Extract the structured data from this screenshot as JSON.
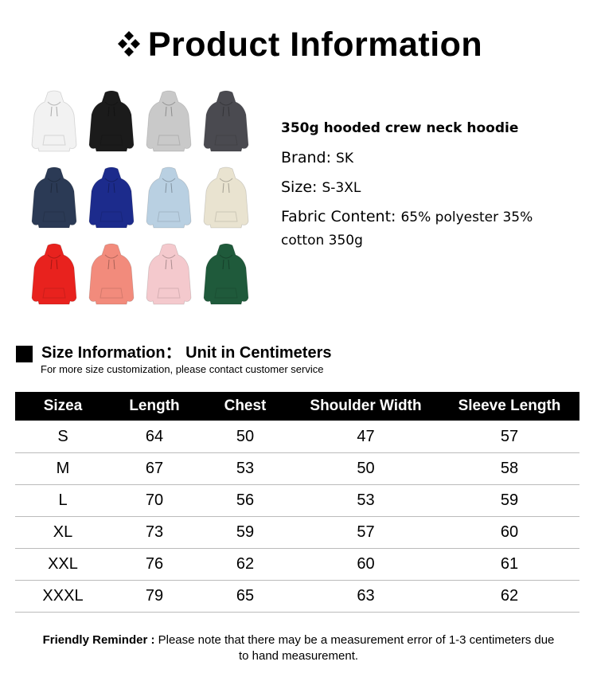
{
  "header": {
    "title": "Product Information",
    "icon": "diamond-cluster-icon"
  },
  "hoodie_colors": [
    "#f2f2f2",
    "#1b1b1b",
    "#c9c9c9",
    "#4a4a50",
    "#2b3a55",
    "#1c2b8c",
    "#b9d0e2",
    "#e9e3d0",
    "#e8221e",
    "#f28b7c",
    "#f4c9cd",
    "#1f5a3b"
  ],
  "product": {
    "name": "350g hooded crew neck hoodie",
    "brand_label": "Brand:",
    "brand": "SK",
    "size_label": "Size:",
    "size": "S-3XL",
    "fabric_label": "Fabric Content:",
    "fabric": "65% polyester 35% cotton 350g"
  },
  "size_section": {
    "title": "Size Information： Unit in Centimeters",
    "subtitle": "For more size customization, please contact customer service"
  },
  "table": {
    "headers": [
      "Sizea",
      "Length",
      "Chest",
      "Shoulder Width",
      "Sleeve Length"
    ],
    "rows": [
      [
        "S",
        "64",
        "50",
        "47",
        "57"
      ],
      [
        "M",
        "67",
        "53",
        "50",
        "58"
      ],
      [
        "L",
        "70",
        "56",
        "53",
        "59"
      ],
      [
        "XL",
        "73",
        "59",
        "57",
        "60"
      ],
      [
        "XXL",
        "76",
        "62",
        "60",
        "61"
      ],
      [
        "XXXL",
        "79",
        "65",
        "63",
        "62"
      ]
    ]
  },
  "reminder": {
    "label": "Friendly Reminder :",
    "text": "Please note that there may be a measurement error of 1-3 centimeters due to hand measurement."
  }
}
